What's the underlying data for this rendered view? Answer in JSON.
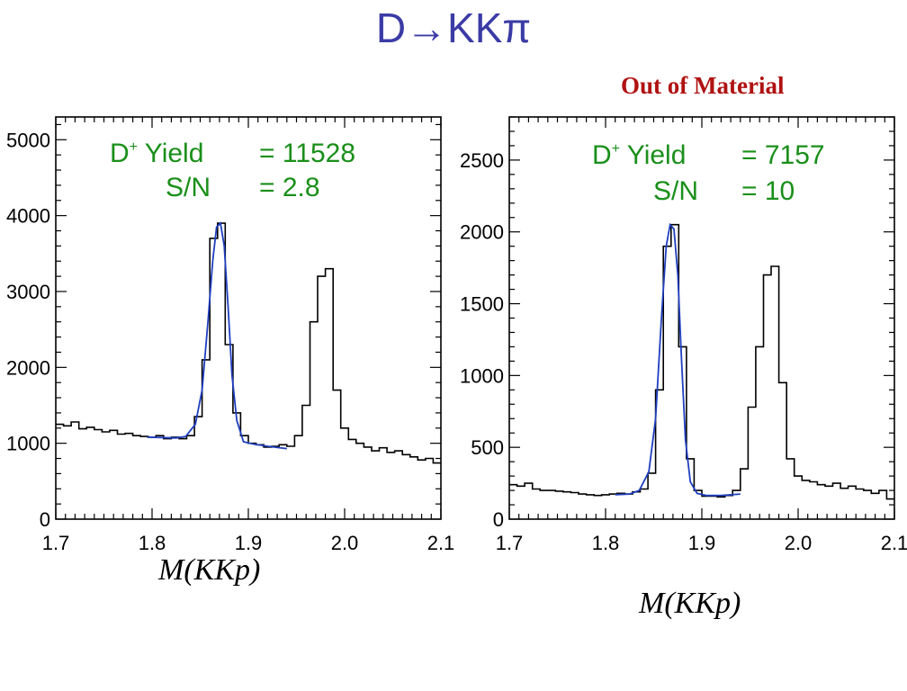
{
  "slide_title": "D→KKπ",
  "subtitle": "Out of Material",
  "colors": {
    "title": "#3b3ba6",
    "subtitle": "#b01212",
    "annotation": "#1a8f1a",
    "fit": "#1f3fbf",
    "histogram": "#000000"
  },
  "chart_data": [
    {
      "type": "line",
      "title": "",
      "xlabel": "M(KKp)",
      "ylabel": "",
      "xlim": [
        1.7,
        2.1
      ],
      "ylim": [
        0,
        5300
      ],
      "grid": false,
      "x_ticks": [
        "1.7",
        "1.8",
        "1.9",
        "2.0",
        "2.1"
      ],
      "y_ticks": [
        "0",
        "1000",
        "2000",
        "3000",
        "4000",
        "5000"
      ],
      "annotations": [
        {
          "label": "D",
          "sup": "+",
          "text": " Yield",
          "value": "= 11528"
        },
        {
          "label": "S/N",
          "value": "= 2.8"
        }
      ],
      "series": [
        {
          "style": "histogram",
          "bin_edges": [
            1.7,
            1.708,
            1.716,
            1.724,
            1.732,
            1.74,
            1.748,
            1.756,
            1.764,
            1.772,
            1.78,
            1.788,
            1.796,
            1.804,
            1.812,
            1.82,
            1.828,
            1.836,
            1.844,
            1.852,
            1.86,
            1.868,
            1.876,
            1.884,
            1.892,
            1.9,
            1.908,
            1.916,
            1.924,
            1.932,
            1.94,
            1.948,
            1.956,
            1.964,
            1.972,
            1.98,
            1.988,
            1.996,
            2.004,
            2.012,
            2.02,
            2.028,
            2.036,
            2.044,
            2.052,
            2.06,
            2.068,
            2.076,
            2.084,
            2.092,
            2.1
          ],
          "values": [
            1250,
            1230,
            1280,
            1190,
            1210,
            1180,
            1150,
            1170,
            1120,
            1130,
            1100,
            1090,
            1080,
            1100,
            1060,
            1080,
            1060,
            1100,
            1350,
            2100,
            3700,
            3900,
            2300,
            1400,
            1100,
            1000,
            980,
            950,
            960,
            980,
            960,
            1100,
            1500,
            2600,
            3200,
            3300,
            1700,
            1200,
            1050,
            1000,
            950,
            900,
            940,
            880,
            900,
            850,
            820,
            780,
            800,
            740
          ]
        },
        {
          "style": "fit",
          "x": [
            1.795,
            1.81,
            1.825,
            1.835,
            1.845,
            1.852,
            1.858,
            1.863,
            1.867,
            1.871,
            1.875,
            1.879,
            1.883,
            1.888,
            1.895,
            1.905,
            1.92,
            1.94
          ],
          "y": [
            1080,
            1075,
            1070,
            1090,
            1250,
            1700,
            2600,
            3400,
            3850,
            3900,
            3600,
            2800,
            1900,
            1300,
            1020,
            990,
            960,
            930
          ]
        }
      ]
    },
    {
      "type": "line",
      "title": "",
      "xlabel": "M(KKp)",
      "ylabel": "",
      "xlim": [
        1.7,
        2.1
      ],
      "ylim": [
        0,
        2800
      ],
      "grid": false,
      "x_ticks": [
        "1.7",
        "1.8",
        "1.9",
        "2.0",
        "2.1"
      ],
      "y_ticks": [
        "0",
        "500",
        "1000",
        "1500",
        "2000",
        "2500"
      ],
      "annotations": [
        {
          "label": "D",
          "sup": "+",
          "text": " Yield",
          "value": "= 7157"
        },
        {
          "label": "S/N",
          "value": "= 10"
        }
      ],
      "series": [
        {
          "style": "histogram",
          "bin_edges": [
            1.7,
            1.708,
            1.716,
            1.724,
            1.732,
            1.74,
            1.748,
            1.756,
            1.764,
            1.772,
            1.78,
            1.788,
            1.796,
            1.804,
            1.812,
            1.82,
            1.828,
            1.836,
            1.844,
            1.852,
            1.86,
            1.868,
            1.876,
            1.884,
            1.892,
            1.9,
            1.908,
            1.916,
            1.924,
            1.932,
            1.94,
            1.948,
            1.956,
            1.964,
            1.972,
            1.98,
            1.988,
            1.996,
            2.004,
            2.012,
            2.02,
            2.028,
            2.036,
            2.044,
            2.052,
            2.06,
            2.068,
            2.076,
            2.084,
            2.092,
            2.1
          ],
          "values": [
            240,
            230,
            250,
            210,
            200,
            200,
            195,
            190,
            185,
            175,
            170,
            165,
            170,
            175,
            180,
            175,
            190,
            210,
            320,
            900,
            1900,
            2050,
            1200,
            420,
            200,
            160,
            160,
            155,
            165,
            200,
            350,
            780,
            1200,
            1700,
            1760,
            950,
            420,
            300,
            270,
            260,
            240,
            230,
            250,
            215,
            230,
            210,
            200,
            180,
            200,
            140
          ]
        },
        {
          "style": "fit",
          "x": [
            1.81,
            1.825,
            1.835,
            1.845,
            1.852,
            1.858,
            1.863,
            1.867,
            1.871,
            1.875,
            1.879,
            1.883,
            1.888,
            1.895,
            1.905,
            1.92,
            1.94
          ],
          "y": [
            170,
            175,
            200,
            330,
            700,
            1400,
            1900,
            2050,
            2020,
            1700,
            1100,
            550,
            260,
            180,
            165,
            165,
            175
          ]
        }
      ]
    }
  ]
}
